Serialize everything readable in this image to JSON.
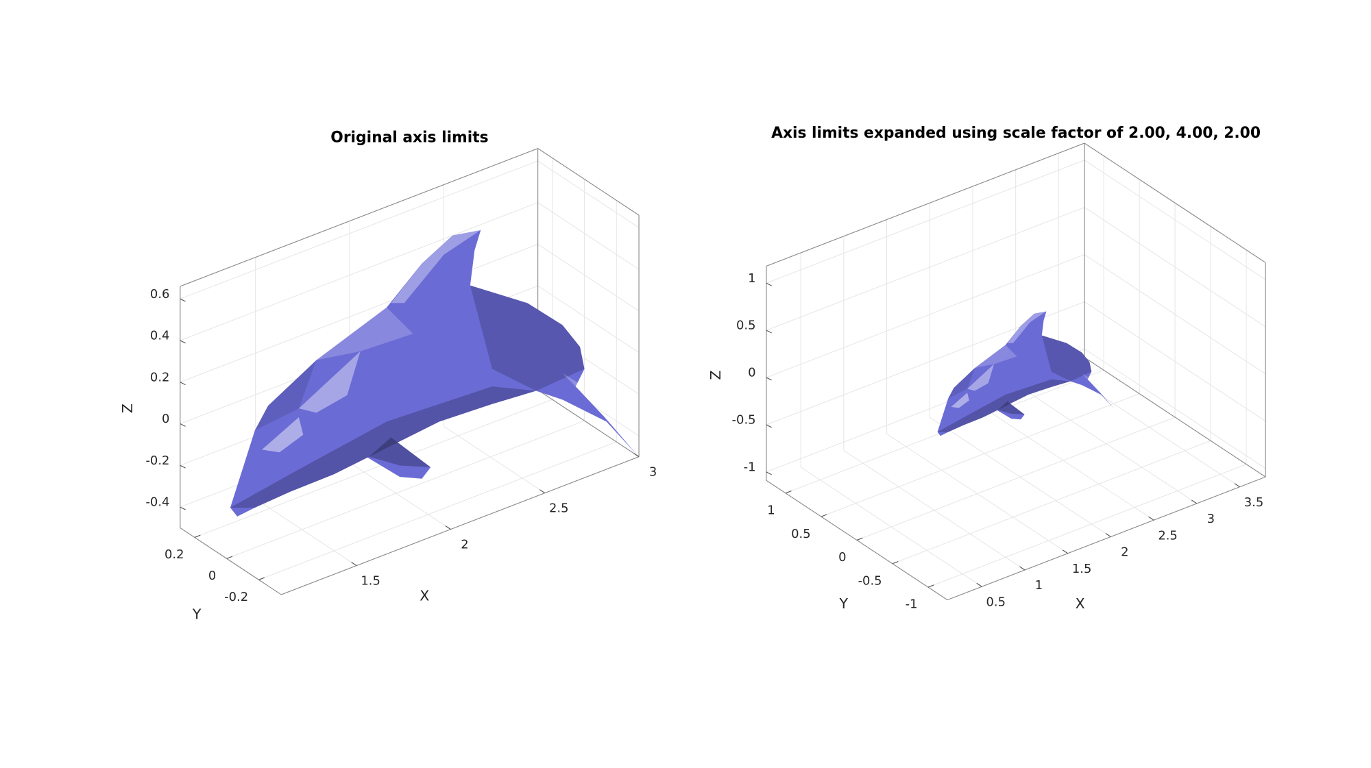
{
  "chart_data": [
    {
      "type": "surface",
      "title": "Original axis limits",
      "xlabel": "X",
      "ylabel": "Y",
      "zlabel": "Z",
      "color": "#6b6bd6",
      "xlim": [
        1.1,
        3
      ],
      "ylim": [
        -0.34,
        0.29
      ],
      "zlim": [
        -0.5,
        0.66
      ],
      "xticks": [
        1.5,
        2,
        2.5,
        3
      ],
      "yticks": [
        -0.2,
        0,
        0.2
      ],
      "zticks": [
        -0.4,
        -0.2,
        0,
        0.2,
        0.4,
        0.6
      ],
      "grid": true
    },
    {
      "type": "surface",
      "title": "Axis limits expanded using scale factor of 2.00, 4.00, 2.00",
      "xlabel": "X",
      "ylabel": "Y",
      "zlabel": "Z",
      "color": "#6b6bd6",
      "xlim": [
        0.1,
        3.8
      ],
      "ylim": [
        -1.27,
        1.27
      ],
      "zlim": [
        -1.09,
        1.18
      ],
      "xticks": [
        0.5,
        1,
        1.5,
        2,
        2.5,
        3,
        3.5
      ],
      "yticks": [
        -1,
        -0.5,
        0,
        0.5,
        1
      ],
      "zticks": [
        -1,
        -0.5,
        0,
        0.5,
        1
      ],
      "grid": true
    }
  ]
}
